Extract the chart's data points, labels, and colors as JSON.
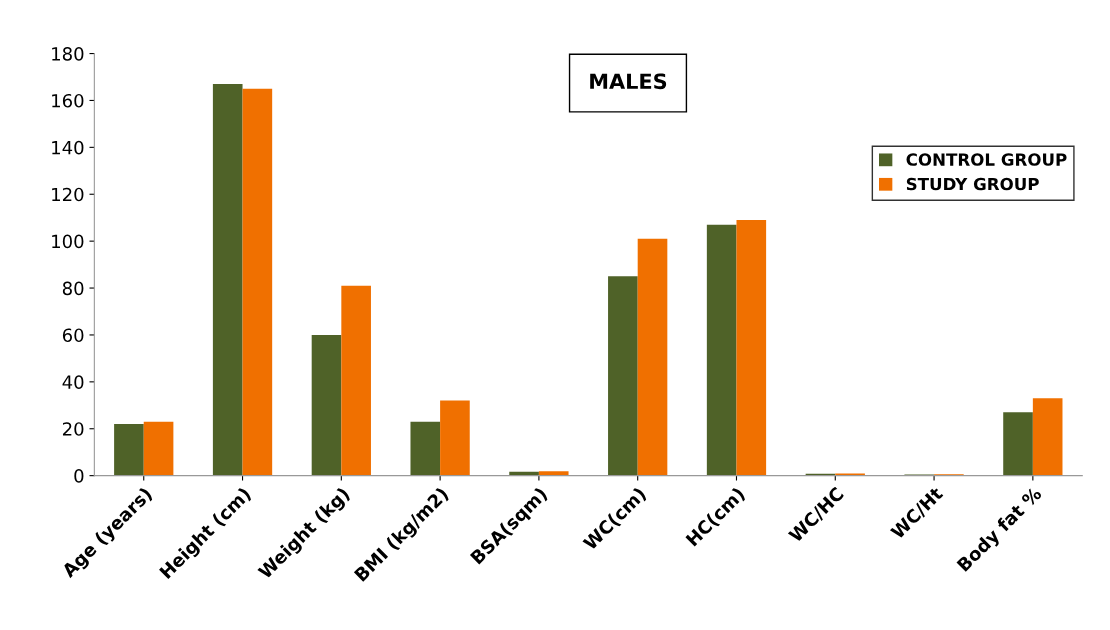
{
  "chart_data": {
    "type": "bar",
    "title": "MALES",
    "categories": [
      "Age (years)",
      "Height (cm)",
      "Weight (kg)",
      "BMI (kg/m2)",
      "BSA(sqm)",
      "WC(cm)",
      "HC(cm)",
      "WC/HC",
      "WC/Ht",
      "Body fat %"
    ],
    "series": [
      {
        "name": "CONTROL GROUP",
        "color": "#4f6228",
        "values": [
          22,
          167,
          60,
          23,
          1.7,
          85,
          107,
          0.8,
          0.5,
          27
        ]
      },
      {
        "name": "STUDY GROUP",
        "color": "#f07000",
        "values": [
          23,
          165,
          81,
          32,
          1.9,
          101,
          109,
          0.9,
          0.6,
          33
        ]
      }
    ],
    "ylim": [
      0,
      180
    ],
    "yticks": [
      0,
      20,
      40,
      60,
      80,
      100,
      120,
      140,
      160,
      180
    ],
    "grid": false,
    "legend": "top right"
  }
}
